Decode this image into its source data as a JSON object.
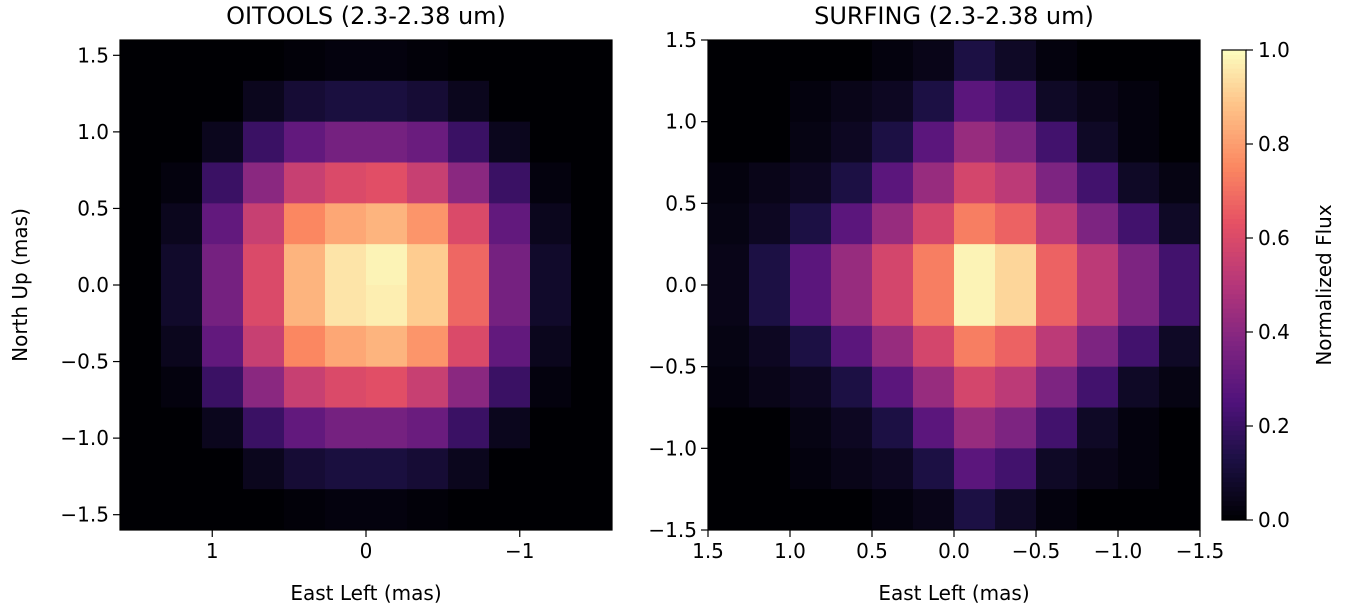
{
  "chart_data": [
    {
      "type": "heatmap",
      "title": "OITOOLS (2.3-2.38 um)",
      "xlabel": "East Left (mas)",
      "ylabel": "North Up (mas)",
      "xlim": [
        1.6,
        -1.6
      ],
      "ylim": [
        -1.6,
        1.6
      ],
      "xticks": [
        1,
        0,
        {
          "value": -1,
          "label": "−1"
        }
      ],
      "yticks": [
        {
          "value": -1.5,
          "label": "−1.5"
        },
        {
          "value": -1.0,
          "label": "−1.0"
        },
        {
          "value": -0.5,
          "label": "−0.5"
        },
        {
          "value": 0.0,
          "label": "0.0"
        },
        0.5,
        {
          "value": 1.0,
          "label": "1.0"
        },
        1.5
      ],
      "colormap": "magma",
      "clim": [
        0,
        1
      ],
      "z": [
        [
          0,
          0,
          0,
          0,
          0.01,
          0.02,
          0.02,
          0.01,
          0,
          0,
          0,
          0
        ],
        [
          0,
          0,
          0,
          0.05,
          0.1,
          0.12,
          0.12,
          0.1,
          0.05,
          0,
          0,
          0
        ],
        [
          0,
          0,
          0.05,
          0.2,
          0.3,
          0.35,
          0.35,
          0.32,
          0.2,
          0.05,
          0,
          0
        ],
        [
          0,
          0.02,
          0.2,
          0.4,
          0.55,
          0.6,
          0.62,
          0.55,
          0.4,
          0.2,
          0.02,
          0
        ],
        [
          0,
          0.05,
          0.3,
          0.55,
          0.75,
          0.82,
          0.85,
          0.78,
          0.6,
          0.3,
          0.05,
          0
        ],
        [
          0,
          0.08,
          0.35,
          0.6,
          0.85,
          0.95,
          0.98,
          0.9,
          0.68,
          0.35,
          0.08,
          0
        ],
        [
          0,
          0.08,
          0.35,
          0.6,
          0.85,
          0.95,
          0.97,
          0.9,
          0.68,
          0.35,
          0.08,
          0
        ],
        [
          0,
          0.05,
          0.3,
          0.55,
          0.75,
          0.82,
          0.85,
          0.78,
          0.6,
          0.3,
          0.05,
          0
        ],
        [
          0,
          0.02,
          0.2,
          0.4,
          0.55,
          0.6,
          0.62,
          0.55,
          0.4,
          0.2,
          0.02,
          0
        ],
        [
          0,
          0,
          0.05,
          0.2,
          0.3,
          0.35,
          0.35,
          0.32,
          0.2,
          0.05,
          0,
          0
        ],
        [
          0,
          0,
          0,
          0.05,
          0.1,
          0.12,
          0.12,
          0.1,
          0.05,
          0,
          0,
          0
        ],
        [
          0,
          0,
          0,
          0,
          0.01,
          0.02,
          0.02,
          0.01,
          0,
          0,
          0,
          0
        ]
      ]
    },
    {
      "type": "heatmap",
      "title": "SURFING (2.3-2.38 um)",
      "xlabel": "East Left (mas)",
      "xlim": [
        1.5,
        -1.5
      ],
      "ylim": [
        -1.5,
        1.5
      ],
      "xticks": [
        1.5,
        {
          "value": 1.0,
          "label": "1.0"
        },
        0.5,
        {
          "value": 0.0,
          "label": "0.0"
        },
        {
          "value": -0.5,
          "label": "−0.5"
        },
        {
          "value": -1.0,
          "label": "−1.0"
        },
        {
          "value": -1.5,
          "label": "−1.5"
        }
      ],
      "yticks": [
        {
          "value": -1.5,
          "label": "−1.5"
        },
        {
          "value": -1.0,
          "label": "−1.0"
        },
        {
          "value": -0.5,
          "label": "−0.5"
        },
        {
          "value": 0.0,
          "label": "0.0"
        },
        0.5,
        {
          "value": 1.0,
          "label": "1.0"
        },
        1.5
      ],
      "colormap": "magma",
      "clim": [
        0,
        1
      ],
      "z": [
        [
          0,
          0,
          0,
          0,
          0.02,
          0.04,
          0.13,
          0.07,
          0.02,
          0,
          0,
          0
        ],
        [
          0,
          0,
          0.02,
          0.04,
          0.06,
          0.13,
          0.28,
          0.22,
          0.07,
          0.04,
          0.02,
          0
        ],
        [
          0,
          0,
          0.03,
          0.06,
          0.13,
          0.28,
          0.43,
          0.37,
          0.22,
          0.07,
          0.02,
          0
        ],
        [
          0.02,
          0.04,
          0.06,
          0.13,
          0.28,
          0.43,
          0.58,
          0.52,
          0.37,
          0.22,
          0.07,
          0.03
        ],
        [
          0.03,
          0.06,
          0.13,
          0.28,
          0.43,
          0.58,
          0.73,
          0.67,
          0.52,
          0.37,
          0.22,
          0.07
        ],
        [
          0.04,
          0.13,
          0.28,
          0.43,
          0.58,
          0.73,
          0.98,
          0.92,
          0.67,
          0.52,
          0.37,
          0.22
        ],
        [
          0.04,
          0.13,
          0.28,
          0.43,
          0.58,
          0.73,
          0.98,
          0.92,
          0.67,
          0.52,
          0.37,
          0.22
        ],
        [
          0.03,
          0.06,
          0.13,
          0.28,
          0.43,
          0.58,
          0.73,
          0.67,
          0.52,
          0.37,
          0.22,
          0.07
        ],
        [
          0.02,
          0.04,
          0.06,
          0.13,
          0.28,
          0.43,
          0.58,
          0.52,
          0.37,
          0.22,
          0.07,
          0.03
        ],
        [
          0,
          0,
          0.03,
          0.06,
          0.13,
          0.28,
          0.43,
          0.37,
          0.22,
          0.07,
          0.02,
          0
        ],
        [
          0,
          0,
          0.02,
          0.04,
          0.06,
          0.13,
          0.28,
          0.22,
          0.07,
          0.04,
          0.02,
          0
        ],
        [
          0,
          0,
          0,
          0,
          0.02,
          0.04,
          0.13,
          0.07,
          0.02,
          0,
          0,
          0
        ]
      ],
      "colorbar": {
        "label": "Normalized Flux",
        "lim": [
          0,
          1
        ],
        "ticks": [
          {
            "value": 0,
            "label": "0.0"
          },
          0.2,
          0.4,
          0.6,
          0.8,
          {
            "value": 1,
            "label": "1.0"
          }
        ]
      }
    }
  ]
}
